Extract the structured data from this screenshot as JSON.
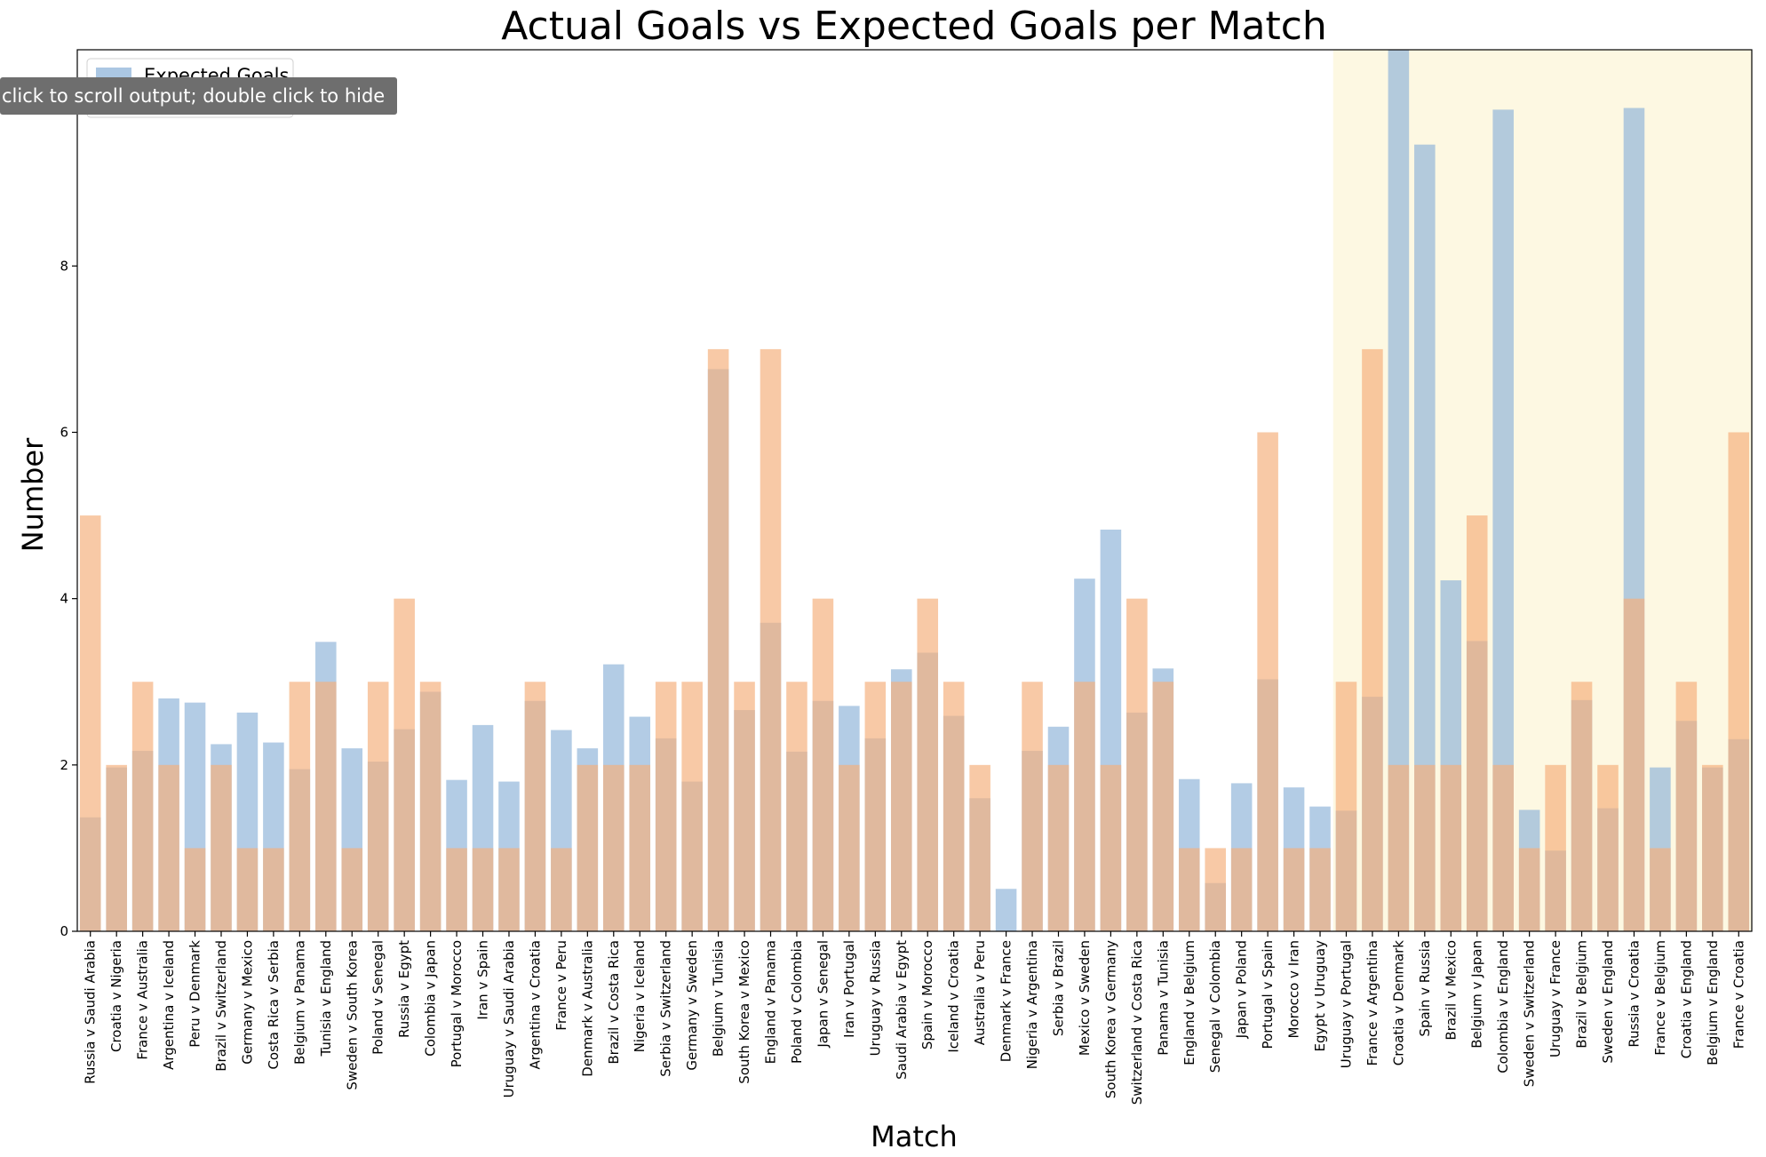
{
  "tooltip": {
    "text": "click to scroll output; double click to hide"
  },
  "chart_data": {
    "type": "bar",
    "title": "Actual Goals vs Expected Goals per Match",
    "xlabel": "Match",
    "ylabel": "Number",
    "ylim": [
      0,
      10.6
    ],
    "yticks": [
      0,
      2,
      4,
      6,
      8
    ],
    "legend": {
      "placement": "top-left",
      "visible_entries": [
        "Expected Goals"
      ]
    },
    "highlight_region": {
      "from_category": "Uruguay v Portugal",
      "to_category": "France v Croatia",
      "color": "#fdf8e2"
    },
    "colors": {
      "expected": "#8fb4d9",
      "actual": "#f5b07c",
      "overlap": "#c4a78c"
    },
    "categories": [
      "Russia v Saudi Arabia",
      "Croatia v Nigeria",
      "France v Australia",
      "Argentina v Iceland",
      "Peru v Denmark",
      "Brazil v Switzerland",
      "Germany v Mexico",
      "Costa Rica v Serbia",
      "Belgium v Panama",
      "Tunisia v England",
      "Sweden v South Korea",
      "Poland v Senegal",
      "Russia v Egypt",
      "Colombia v Japan",
      "Portugal v Morocco",
      "Iran v Spain",
      "Uruguay v Saudi Arabia",
      "Argentina v Croatia",
      "France v Peru",
      "Denmark v Australia",
      "Brazil v Costa Rica",
      "Nigeria v Iceland",
      "Serbia v Switzerland",
      "Germany v Sweden",
      "Belgium v Tunisia",
      "South Korea v Mexico",
      "England v Panama",
      "Poland v Colombia",
      "Japan v Senegal",
      "Iran v Portugal",
      "Uruguay v Russia",
      "Saudi Arabia v Egypt",
      "Spain v Morocco",
      "Iceland v Croatia",
      "Australia v Peru",
      "Denmark v France",
      "Nigeria v Argentina",
      "Serbia v Brazil",
      "Mexico v Sweden",
      "South Korea v Germany",
      "Switzerland v Costa Rica",
      "Panama v Tunisia",
      "England v Belgium",
      "Senegal v Colombia",
      "Japan v Poland",
      "Portugal v Spain",
      "Morocco v Iran",
      "Egypt v Uruguay",
      "Uruguay v Portugal",
      "France v Argentina",
      "Croatia v Denmark",
      "Spain v Russia",
      "Brazil v Mexico",
      "Belgium v Japan",
      "Colombia v England",
      "Sweden v Switzerland",
      "Uruguay v France",
      "Brazil v Belgium",
      "Sweden v England",
      "Russia v Croatia",
      "France v Belgium",
      "Croatia v England",
      "Belgium v England",
      "France v Croatia"
    ],
    "series": [
      {
        "name": "Expected Goals",
        "values": [
          1.37,
          1.97,
          2.17,
          2.8,
          2.75,
          2.25,
          2.63,
          2.27,
          1.95,
          3.48,
          2.2,
          2.04,
          2.43,
          2.88,
          1.82,
          2.48,
          1.8,
          2.77,
          2.42,
          2.2,
          3.21,
          2.58,
          2.32,
          1.8,
          6.76,
          2.66,
          3.71,
          2.16,
          2.77,
          2.71,
          2.32,
          3.15,
          3.35,
          2.59,
          1.6,
          0.51,
          2.17,
          2.46,
          4.24,
          4.83,
          2.63,
          3.16,
          1.83,
          0.58,
          1.78,
          3.03,
          1.73,
          1.5,
          1.45,
          2.82,
          10.64,
          9.46,
          4.22,
          3.49,
          9.88,
          1.46,
          0.97,
          2.78,
          1.48,
          9.9,
          1.97,
          2.53,
          1.97,
          2.31
        ]
      },
      {
        "name": "Actual Goals",
        "values": [
          5,
          2,
          3,
          2,
          1,
          2,
          1,
          1,
          3,
          3,
          1,
          3,
          4,
          3,
          1,
          1,
          1,
          3,
          1,
          2,
          2,
          2,
          3,
          3,
          7,
          3,
          7,
          3,
          4,
          2,
          3,
          3,
          4,
          3,
          2,
          0,
          3,
          2,
          3,
          2,
          4,
          3,
          1,
          1,
          1,
          6,
          1,
          1,
          3,
          7,
          2,
          2,
          2,
          5,
          2,
          1,
          2,
          3,
          2,
          4,
          1,
          3,
          2,
          6
        ]
      }
    ]
  }
}
